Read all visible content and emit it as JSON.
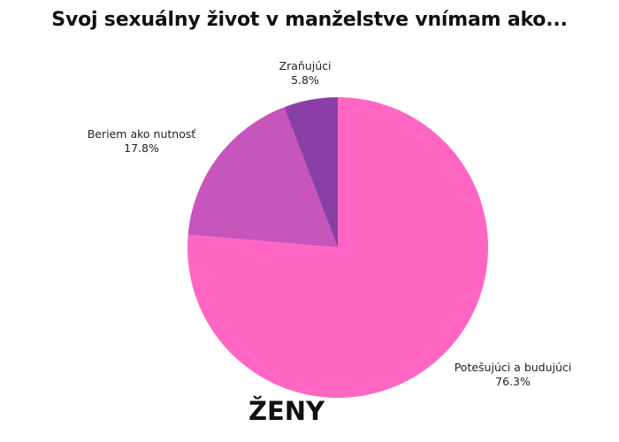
{
  "chart_data": {
    "type": "pie",
    "title": "Svoj sexuálny život v manželstve vnímam ako...",
    "subtitle": "ŽENY",
    "slices": [
      {
        "label": "Potešujúci a budujúci",
        "value": 76.3,
        "value_label": "76.3%",
        "color": "#ff66c4"
      },
      {
        "label": "Beriem ako nutnosť",
        "value": 17.8,
        "value_label": "17.8%",
        "color": "#c655bc"
      },
      {
        "label": "Zraňujúci",
        "value": 5.8,
        "value_label": "5.8%",
        "color": "#8a3fa6"
      }
    ],
    "start_angle": "12 o'clock",
    "direction": "clockwise"
  }
}
